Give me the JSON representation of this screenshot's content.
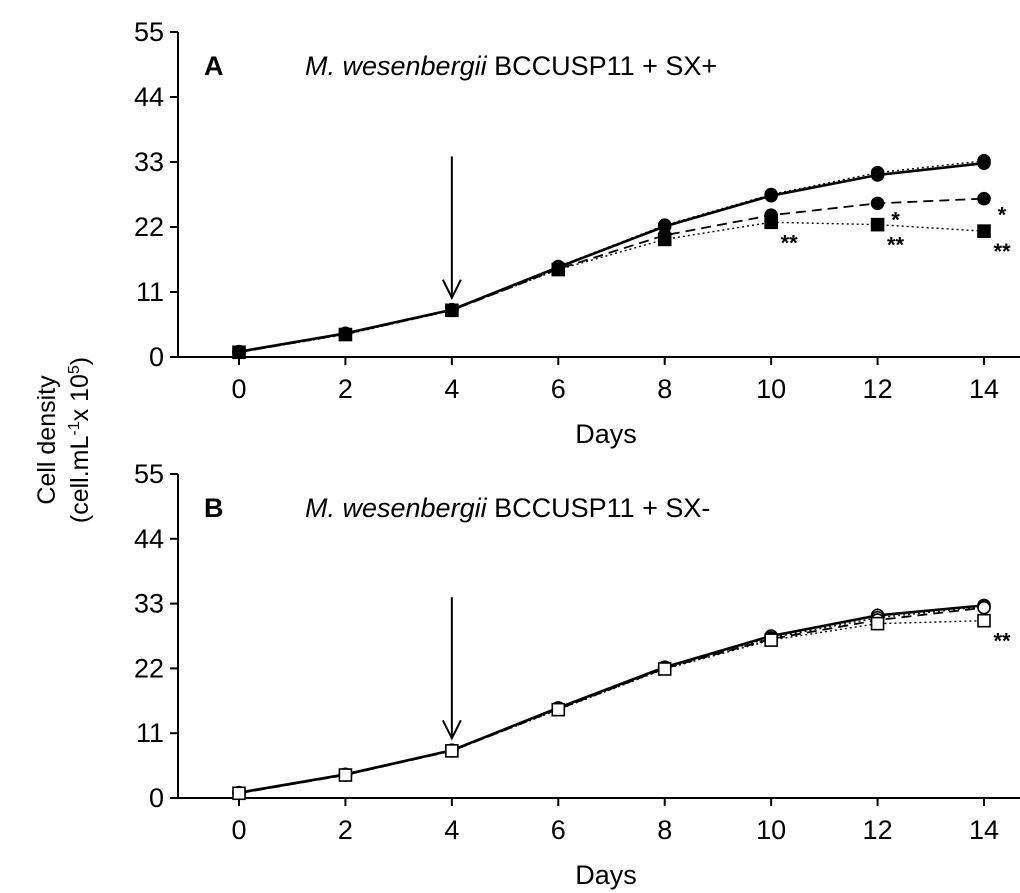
{
  "figure": {
    "ylabel_line1": "Cell density",
    "ylabel_line2_prefix": "(cell.mL",
    "ylabel_line2_sup1": "-1",
    "ylabel_line2_mid": "x 10",
    "ylabel_line2_sup2": "5",
    "ylabel_line2_suffix": ")"
  },
  "chart_data": [
    {
      "type": "line",
      "panel_letter": "A",
      "title_italic": "M. wesenbergii",
      "title_rest": " BCCUSP11 + SX+",
      "xlabel": "Days",
      "ylabel": "Cell density (cell.mL-1 x 105)",
      "x": [
        0,
        2,
        4,
        6,
        8,
        10,
        12,
        14
      ],
      "xticks": [
        "0",
        "2",
        "4",
        "6",
        "8",
        "10",
        "12",
        "14"
      ],
      "yticks": [
        "0",
        "11",
        "22",
        "33",
        "44",
        "55"
      ],
      "xlim": [
        -0.6,
        14.6
      ],
      "ylim": [
        0,
        55
      ],
      "grid": false,
      "arrow_at_day": 4,
      "series": [
        {
          "marker": "filled-circle",
          "line": "solid",
          "error": [
            0.4,
            0.3,
            0.3,
            0.4,
            0.5,
            0.6,
            1.0,
            1.0
          ],
          "values": [
            0.9,
            4.0,
            8.0,
            15.2,
            22.1,
            27.3,
            30.8,
            32.8
          ]
        },
        {
          "marker": "filled-circle",
          "line": "dotted",
          "error": [
            0.3,
            0.3,
            0.3,
            0.4,
            0.5,
            0.6,
            1.0,
            1.0
          ],
          "values": [
            0.9,
            4.0,
            8.0,
            15.3,
            22.3,
            27.5,
            31.2,
            33.2
          ]
        },
        {
          "marker": "filled-circle",
          "line": "dashed",
          "error": [
            0.3,
            0.3,
            0.3,
            0.4,
            0.5,
            0.6,
            0.6,
            0.6
          ],
          "values": [
            0.8,
            3.9,
            7.9,
            14.9,
            20.6,
            24.0,
            26.0,
            26.8
          ]
        },
        {
          "marker": "filled-square",
          "line": "dotted",
          "error": [
            0.3,
            0.3,
            0.3,
            0.4,
            0.5,
            0.6,
            0.6,
            0.6
          ],
          "values": [
            0.8,
            3.8,
            7.9,
            14.8,
            19.9,
            22.8,
            22.4,
            21.3
          ]
        }
      ],
      "annotations": [
        {
          "text": "*",
          "x": 12,
          "y": 26.0
        },
        {
          "text": "*",
          "x": 14,
          "y": 26.8
        },
        {
          "text": "**",
          "x": 10,
          "y": 22.8
        },
        {
          "text": "**",
          "x": 12,
          "y": 22.4
        },
        {
          "text": "**",
          "x": 14,
          "y": 21.3
        }
      ]
    },
    {
      "type": "line",
      "panel_letter": "B",
      "title_italic": "M. wesenbergii",
      "title_rest": " BCCUSP11 + SX-",
      "xlabel": "Days",
      "ylabel": "Cell density (cell.mL-1 x 105)",
      "x": [
        0,
        2,
        4,
        6,
        8,
        10,
        12,
        14
      ],
      "xticks": [
        "0",
        "2",
        "4",
        "6",
        "8",
        "10",
        "12",
        "14"
      ],
      "yticks": [
        "0",
        "11",
        "22",
        "33",
        "44",
        "55"
      ],
      "xlim": [
        -0.6,
        14.6
      ],
      "ylim": [
        0,
        55
      ],
      "grid": false,
      "arrow_at_day": 4,
      "series": [
        {
          "marker": "open-circle",
          "line": "solid",
          "error": [
            0.3,
            0.3,
            0.3,
            0.4,
            0.5,
            0.6,
            1.2,
            0.8
          ],
          "values": [
            0.9,
            4.0,
            8.1,
            15.3,
            22.2,
            27.5,
            31.0,
            32.7
          ]
        },
        {
          "marker": "open-circle",
          "line": "dotted",
          "error": [
            0.3,
            0.3,
            0.3,
            0.4,
            0.5,
            0.6,
            1.2,
            0.8
          ],
          "values": [
            0.9,
            4.0,
            8.1,
            15.2,
            22.1,
            27.2,
            30.6,
            32.5
          ]
        },
        {
          "marker": "open-circle",
          "line": "dashed",
          "error": [
            0.3,
            0.3,
            0.3,
            0.4,
            0.5,
            0.6,
            1.2,
            0.8
          ],
          "values": [
            0.8,
            3.9,
            8.0,
            15.1,
            22.0,
            27.0,
            30.2,
            32.3
          ]
        },
        {
          "marker": "open-square",
          "line": "dotted",
          "error": [
            0.3,
            0.3,
            0.3,
            0.4,
            0.5,
            0.6,
            0.8,
            0.6
          ],
          "values": [
            0.8,
            3.9,
            8.0,
            15.0,
            21.9,
            26.8,
            29.6,
            30.1
          ]
        }
      ],
      "annotations": [
        {
          "text": "**",
          "x": 14,
          "y": 30.1
        }
      ]
    }
  ]
}
